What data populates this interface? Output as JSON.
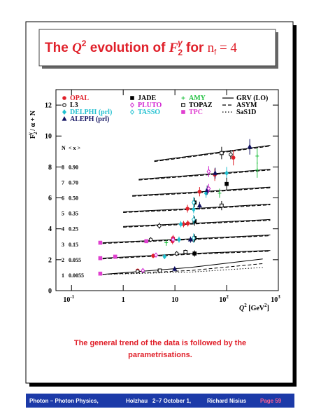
{
  "slide": {
    "title": [
      "The ",
      "Q",
      "2",
      " evolution of ",
      "F",
      "2",
      "γ",
      " for ",
      "n",
      "f",
      " = 4"
    ],
    "caption": [
      "The general trend of the data is followed by the",
      "parametrisations."
    ],
    "footer": [
      "Photon – Photon Physics,",
      "Holzhau",
      "2–7 October 1,",
      "Richard Nisius",
      "Page 59"
    ]
  },
  "chart_data": {
    "type": "scatter",
    "ylabel": [
      "F",
      "2",
      "γ",
      " / α + N"
    ],
    "xlabel": [
      "Q",
      "2",
      " [GeV",
      "2",
      "]"
    ],
    "xscale": "log",
    "xlim": [
      0.05,
      1000
    ],
    "xticks": [
      {
        "value": 0.1,
        "label": "10",
        "exp": "-1"
      },
      1,
      10,
      {
        "value": 100,
        "label": "10",
        "exp": "2"
      },
      {
        "value": 1000,
        "label": "10",
        "exp": "3"
      }
    ],
    "ylim": [
      0,
      13
    ],
    "yticks": [
      0,
      2,
      4,
      6,
      8,
      10,
      12
    ],
    "bin_header": [
      "N",
      "< x >"
    ],
    "bins": [
      {
        "n": 8,
        "x": "0.90"
      },
      {
        "n": 7,
        "x": "0.70"
      },
      {
        "n": 6,
        "x": "0.50"
      },
      {
        "n": 5,
        "x": "0.35"
      },
      {
        "n": 4,
        "x": "0.25"
      },
      {
        "n": 3,
        "x": "0.15"
      },
      {
        "n": 2,
        "x": "0.055"
      },
      {
        "n": 1,
        "x": "0.0055"
      }
    ],
    "series": [
      {
        "name": "OPAL",
        "color": "#e0202a",
        "marker": "circle",
        "x": [
          1.9,
          3.8,
          9,
          17.8,
          17.5,
          30,
          59,
          135,
          9.2,
          14.7
        ],
        "values": [
          1.3,
          2.25,
          3.2,
          4.35,
          5.3,
          6.4,
          7.5,
          8.6,
          3.4,
          4.3
        ],
        "errors": [
          0.1,
          0.15,
          0.2,
          0.2,
          0.25,
          0.3,
          0.4,
          0.5,
          0.2,
          0.2
        ]
      },
      {
        "name": "L3",
        "color": "#000000",
        "marker": "open-circle",
        "x": [
          1.9,
          5,
          10.8,
          23,
          120,
          5,
          3.4
        ],
        "values": [
          1.25,
          1.3,
          2.4,
          3.3,
          8.8,
          4.2,
          3.3
        ],
        "errors": [
          0.1,
          0.1,
          0.15,
          0.2,
          0.3,
          0.2,
          0.15
        ]
      },
      {
        "name": "DELPHI (prl)",
        "color": "#20c0d0",
        "marker": "diamond",
        "x": [
          6.3,
          12,
          13,
          23,
          40,
          100
        ],
        "values": [
          2.2,
          3.3,
          4.3,
          5.25,
          6.3,
          7.6
        ],
        "errors": [
          0.15,
          0.2,
          0.2,
          0.25,
          0.3,
          0.4
        ]
      },
      {
        "name": "ALEPH (prl)",
        "color": "#101060",
        "marker": "triangle",
        "x": [
          9.9,
          20,
          30,
          42,
          60,
          280
        ],
        "values": [
          1.4,
          3.3,
          5.5,
          6.5,
          7.6,
          9.3
        ],
        "errors": [
          0.15,
          0.2,
          0.25,
          0.3,
          0.35,
          0.5
        ]
      },
      {
        "name": "JADE",
        "color": "#000000",
        "marker": "square",
        "x": [
          24,
          24,
          24,
          24,
          100
        ],
        "values": [
          2.4,
          3.4,
          4.5,
          5.7,
          6.9
        ],
        "errors": [
          0.2,
          0.25,
          0.3,
          0.3,
          0.4
        ]
      },
      {
        "name": "PLUTO",
        "color": "#d020d0",
        "marker": "open-diamond",
        "x": [
          2.4,
          4.3,
          9.2,
          45,
          45
        ],
        "values": [
          1.3,
          2.3,
          3.3,
          6.6,
          7.7
        ],
        "errors": [
          0.1,
          0.15,
          0.2,
          0.3,
          0.35
        ]
      },
      {
        "name": "TASSO",
        "color": "#20c0d0",
        "marker": "open-diamond",
        "x": [
          23,
          23,
          23
        ],
        "values": [
          3.4,
          4.6,
          5.7
        ],
        "errors": [
          0.3,
          0.3,
          0.35
        ]
      },
      {
        "name": "AMY",
        "color": "#20c040",
        "marker": "cross",
        "x": [
          6.8,
          73,
          390,
          390
        ],
        "values": [
          3.1,
          6.3,
          7.8,
          8.7
        ],
        "errors": [
          0.2,
          0.3,
          0.5,
          0.5
        ]
      },
      {
        "name": "TOPAZ",
        "color": "#000000",
        "marker": "open-square",
        "x": [
          5.1,
          16,
          80,
          80
        ],
        "values": [
          1.3,
          2.5,
          5.5,
          8.9
        ],
        "errors": [
          0.1,
          0.15,
          0.3,
          0.4
        ]
      },
      {
        "name": "TPC",
        "color": "#e040d0",
        "marker": "square",
        "x": [
          0.36,
          0.36,
          0.36,
          0.7,
          2.8
        ],
        "values": [
          1.1,
          2.1,
          3.1,
          2.2,
          3.2
        ],
        "errors": [
          0.05,
          0.05,
          0.05,
          0.1,
          0.1
        ]
      }
    ],
    "curves": [
      {
        "name": "GRV (LO)",
        "color": "#000000",
        "dash": "solid",
        "x": [
          0.4,
          20,
          500,
          null,
          0.4,
          20,
          700,
          null,
          0.4,
          20,
          700,
          null,
          1,
          20,
          700,
          null,
          1,
          20,
          700,
          null,
          1.5,
          20,
          700,
          null,
          2,
          20,
          700,
          null,
          4,
          20,
          700
        ],
        "values": [
          1.05,
          1.5,
          2.05,
          null,
          2.1,
          2.4,
          2.6,
          null,
          3.1,
          3.35,
          3.6,
          null,
          4.15,
          4.35,
          4.6,
          null,
          5.1,
          5.3,
          5.6,
          null,
          6.15,
          6.35,
          6.7,
          null,
          7.2,
          7.45,
          7.85,
          null,
          8.4,
          8.7,
          9.4
        ]
      },
      {
        "name": "ASYM",
        "color": "#000000",
        "dash": "dashed",
        "x": [
          0.4,
          20,
          500,
          null,
          0.4,
          20,
          700,
          null,
          0.4,
          20,
          700,
          null,
          1,
          20,
          700,
          null,
          1,
          20,
          700,
          null,
          1.5,
          20,
          700,
          null,
          2,
          20,
          700,
          null,
          4,
          20,
          700
        ],
        "values": [
          1.05,
          1.3,
          1.75,
          null,
          2.05,
          2.35,
          2.55,
          null,
          3.05,
          3.3,
          3.55,
          null,
          4.1,
          4.3,
          4.55,
          null,
          5.05,
          5.25,
          5.55,
          null,
          6.1,
          6.3,
          6.65,
          null,
          7.15,
          7.4,
          7.8,
          null,
          8.35,
          8.65,
          9.35
        ]
      },
      {
        "name": "SaS1D",
        "color": "#000000",
        "dash": "dotted",
        "x": [
          0.4,
          20,
          500,
          null,
          0.4,
          20,
          700,
          null,
          0.4,
          20,
          700,
          null,
          1,
          20,
          700,
          null,
          1,
          20,
          700,
          null,
          1.5,
          20,
          700,
          null,
          2,
          20,
          700,
          null,
          4,
          20,
          700
        ],
        "values": [
          1.05,
          1.2,
          1.5,
          null,
          2.07,
          2.37,
          2.57,
          null,
          3.07,
          3.32,
          3.57,
          null,
          4.12,
          4.32,
          4.57,
          null,
          5.07,
          5.27,
          5.57,
          null,
          6.12,
          6.32,
          6.67,
          null,
          7.17,
          7.42,
          7.82,
          null,
          8.37,
          8.67,
          9.37
        ]
      }
    ]
  }
}
